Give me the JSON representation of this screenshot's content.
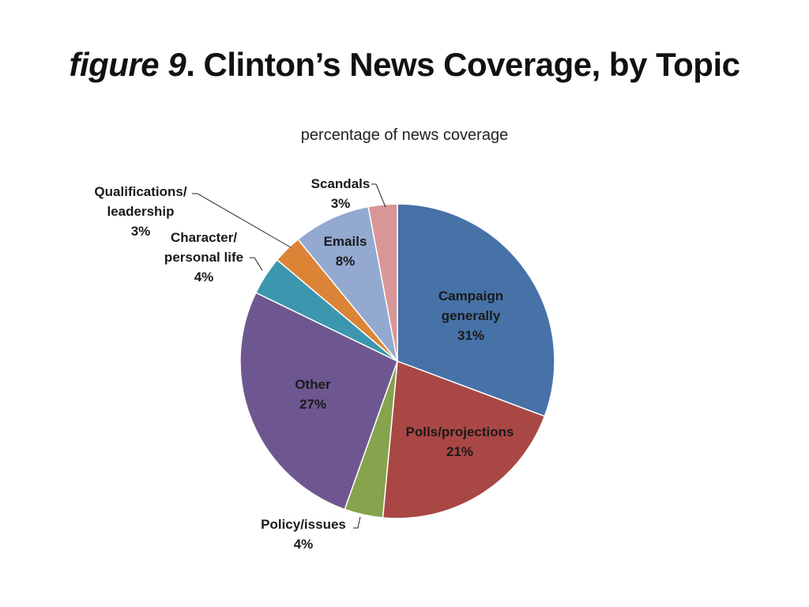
{
  "figure": {
    "label": "figure 9",
    "title": ". Clinton’s News Coverage, by Topic"
  },
  "chart_data": {
    "type": "pie",
    "subtitle": "percentage of news coverage",
    "start_angle_deg": 0,
    "direction": "clockwise",
    "slices": [
      {
        "name": "campaign",
        "label_lines": [
          "Campaign",
          "generally"
        ],
        "value_label": "31%",
        "value": 31,
        "color": "#4672a8"
      },
      {
        "name": "polls",
        "label_lines": [
          "Polls/projections"
        ],
        "value_label": "21%",
        "value": 21,
        "color": "#a94745"
      },
      {
        "name": "policy",
        "label_lines": [
          "Policy/issues"
        ],
        "value_label": "4%",
        "value": 4,
        "color": "#86a34d"
      },
      {
        "name": "other",
        "label_lines": [
          "Other"
        ],
        "value_label": "27%",
        "value": 27,
        "color": "#6e5790"
      },
      {
        "name": "character",
        "label_lines": [
          "Character/",
          "personal life"
        ],
        "value_label": "4%",
        "value": 4,
        "color": "#3b96ae"
      },
      {
        "name": "qualifications",
        "label_lines": [
          "Qualifications/",
          "leadership"
        ],
        "value_label": "3%",
        "value": 3,
        "color": "#db8436"
      },
      {
        "name": "emails",
        "label_lines": [
          "Emails"
        ],
        "value_label": "8%",
        "value": 8,
        "color": "#93a9d0"
      },
      {
        "name": "scandals",
        "label_lines": [
          "Scandals"
        ],
        "value_label": "3%",
        "value": 3,
        "color": "#d89697"
      }
    ]
  }
}
